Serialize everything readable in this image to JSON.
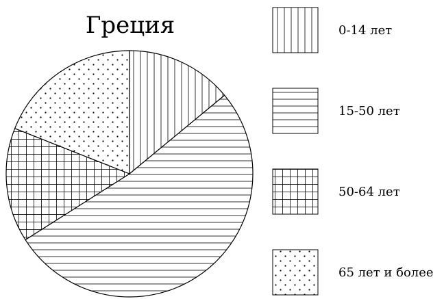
{
  "chart_data": {
    "type": "pie",
    "title": "Греция",
    "slices": [
      {
        "label": "0-14 лет",
        "value": 14,
        "pattern": "vertical-lines"
      },
      {
        "label": "15-50 лет",
        "value": 52,
        "pattern": "horizontal-lines"
      },
      {
        "label": "50-64 лет",
        "value": 15,
        "pattern": "grid"
      },
      {
        "label": "65 лет и более",
        "value": 19,
        "pattern": "dots"
      }
    ],
    "legend_position": "right",
    "start_angle_deg": 0,
    "direction": "clockwise"
  }
}
